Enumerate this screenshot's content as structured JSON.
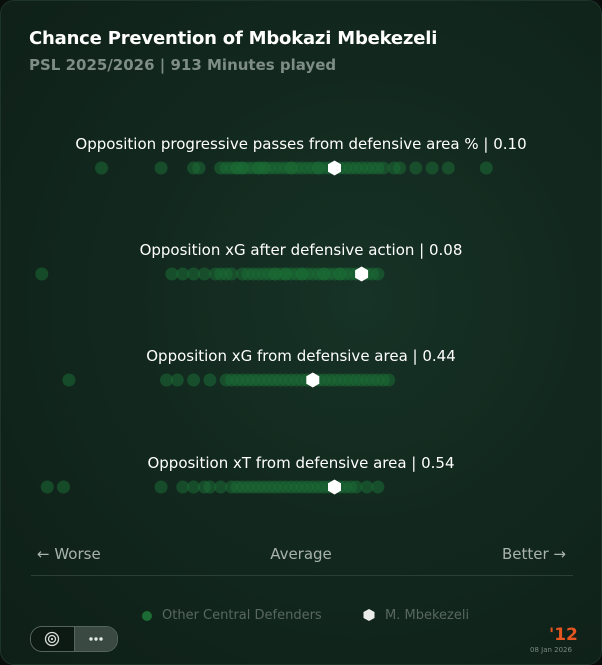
{
  "header": {
    "title": "Chance Prevention of Mbokazi Mbekezeli",
    "subtitle": "PSL 2025/2026 | 913 Minutes played"
  },
  "axis": {
    "worse_label": "← Worse",
    "average_label": "Average",
    "better_label": "Better →"
  },
  "legend": {
    "others_label": "Other Central Defenders",
    "player_label": "M. Mbekezeli"
  },
  "footer": {
    "brand": "'12",
    "date": "08 Jan 2026"
  },
  "colors": {
    "dot": "#1c6b34",
    "player_marker": "#ffffff",
    "accent": "#e5551f"
  },
  "chart_data": {
    "type": "scatter",
    "scale": "percentile, worse (left) to better (right)",
    "xlim": [
      0,
      100
    ],
    "metrics": [
      {
        "label": "Opposition progressive passes from defensive area % | 0.10",
        "player": 56,
        "others": [
          13,
          24,
          30,
          31,
          35,
          36,
          37,
          38,
          38,
          39,
          39,
          40,
          41,
          42,
          42,
          43,
          43,
          44,
          45,
          46,
          47,
          48,
          48,
          49,
          50,
          51,
          52,
          53,
          53,
          54,
          55,
          57,
          58,
          59,
          60,
          61,
          62,
          63,
          64,
          65,
          67,
          68,
          71,
          74,
          77,
          84
        ]
      },
      {
        "label": "Opposition xG after defensive action | 0.08",
        "player": 61,
        "others": [
          2,
          26,
          28,
          30,
          32,
          34,
          35,
          36,
          37,
          39,
          40,
          41,
          42,
          43,
          44,
          45,
          45,
          46,
          47,
          47,
          48,
          49,
          50,
          50,
          51,
          52,
          53,
          54,
          54,
          55,
          56,
          57,
          57,
          58,
          59,
          60,
          62,
          63,
          64
        ]
      },
      {
        "label": "Opposition xG from defensive area | 0.44",
        "player": 52,
        "others": [
          7,
          25,
          27,
          30,
          33,
          36,
          37,
          38,
          39,
          40,
          41,
          42,
          43,
          44,
          45,
          46,
          47,
          48,
          49,
          50,
          51,
          53,
          54,
          55,
          56,
          57,
          58,
          59,
          60,
          61,
          62,
          63,
          64,
          65,
          66
        ]
      },
      {
        "label": "Opposition xT from defensive area | 0.54",
        "player": 56,
        "others": [
          3,
          6,
          24,
          28,
          30,
          32,
          33,
          35,
          37,
          38,
          39,
          40,
          41,
          42,
          43,
          44,
          45,
          46,
          47,
          48,
          49,
          50,
          51,
          52,
          53,
          54,
          55,
          57,
          58,
          59,
          60,
          62,
          64
        ]
      }
    ]
  }
}
